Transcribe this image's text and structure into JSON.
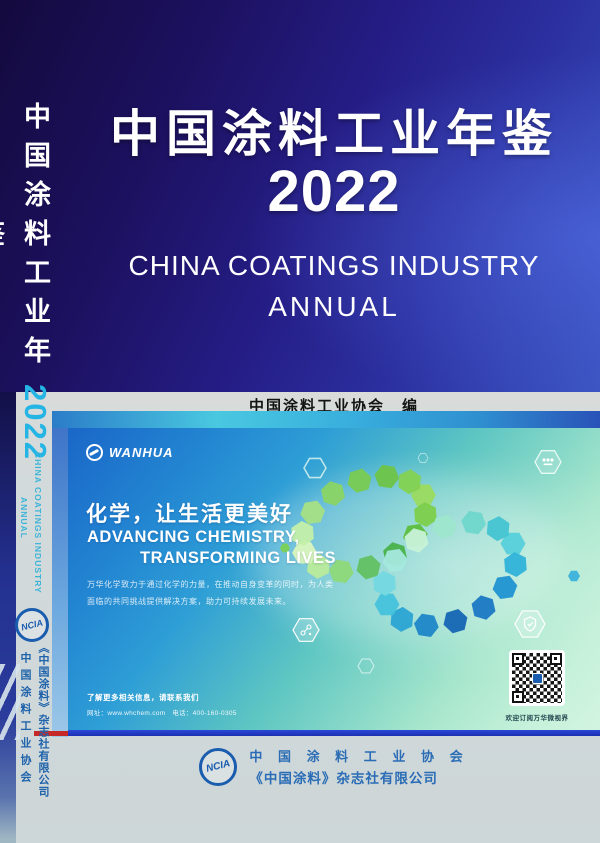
{
  "cover": {
    "spine": {
      "title_vertical": "中国涂料工业年鉴",
      "year": "2022",
      "subtitle_en_line1": "CHINA COATINGS INDUSTRY",
      "subtitle_en_line2": "ANNUAL",
      "logo_text": "NCIA",
      "org_vertical": "中国涂料工业协会",
      "publisher_vertical": "《中国涂料》杂志社有限公司"
    },
    "front": {
      "title": "中国涂料工业年鉴",
      "year": "2022",
      "subtitle_line1": "CHINA COATINGS INDUSTRY",
      "subtitle_line2": "ANNUAL",
      "editor_line": "中国涂料工业协会　编"
    },
    "ad_banner": {
      "brand": "WANHUA",
      "slogan_cn": "化学，让生活更美好",
      "slogan_en_line1": "ADVANCING CHEMISTRY,",
      "slogan_en_line2": "TRANSFORMING LIVES",
      "body_line1": "万华化学致力于通过化学的力量，在推动自身变革的同时，为人类",
      "body_line2": "面临的共同挑战提供解决方案，助力可持续发展未来。",
      "contact_line": "了解更多相关信息，请联系我们",
      "contact_details": "网址：www.whchem.com　电话：400-160-0305",
      "qr_caption": "欢迎订阅万华微视界"
    },
    "footer": {
      "logo_text": "NCIA",
      "org_line": "中 国 涂 料 工 业 协 会",
      "publisher_line": "《中国涂料》杂志社有限公司"
    },
    "colors": {
      "deep_navy": "#140a3e",
      "royal_blue": "#2b2f9f",
      "spine_year_cyan": "#25b5e5",
      "banner_blue": "#1a67c8",
      "banner_green": "#c6f1da",
      "underline_blue": "#2233c2",
      "red_accent": "#c62828",
      "footer_blue": "#2a6cb5",
      "base_gray": "#d3dadb"
    }
  }
}
